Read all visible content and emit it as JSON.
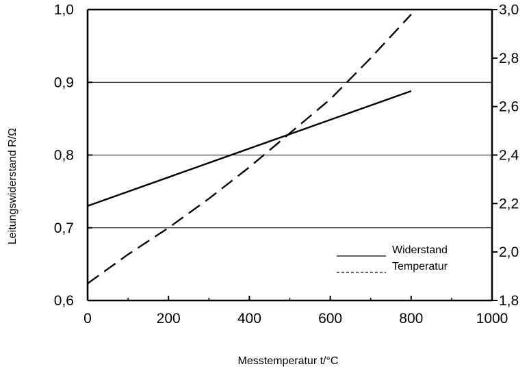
{
  "chart_data": {
    "type": "line",
    "title": "",
    "xlabel": "Messtemperatur t/°C",
    "ylabel": "Leitungswiderstand R/Ω",
    "ylabel_right": "",
    "xlim": [
      0,
      1000
    ],
    "ylim": [
      0.6,
      1.0
    ],
    "ylim_right": [
      1.8,
      3.0
    ],
    "x_ticks": [
      "0",
      "200",
      "400",
      "600",
      "800",
      "1000"
    ],
    "y_ticks": [
      "0,6",
      "0,7",
      "0,8",
      "0,9",
      "1,0"
    ],
    "y_ticks_right": [
      "1,8",
      "2,0",
      "2,2",
      "2,4",
      "2,6",
      "2,8",
      "3,0"
    ],
    "grid": "horizontal at 0,7 / 0,8 / 0,9",
    "legend_placement": "bottom-right",
    "series": [
      {
        "name": "Widerstand",
        "axis": "left",
        "style": "solid",
        "x": [
          0,
          800
        ],
        "y": [
          0.73,
          0.888
        ]
      },
      {
        "name": "Temperatur",
        "axis": "right",
        "style": "dashed",
        "x": [
          0,
          100,
          200,
          300,
          400,
          500,
          600,
          700,
          800
        ],
        "y": [
          1.87,
          1.99,
          2.1,
          2.22,
          2.35,
          2.49,
          2.63,
          2.8,
          2.98
        ]
      }
    ]
  }
}
